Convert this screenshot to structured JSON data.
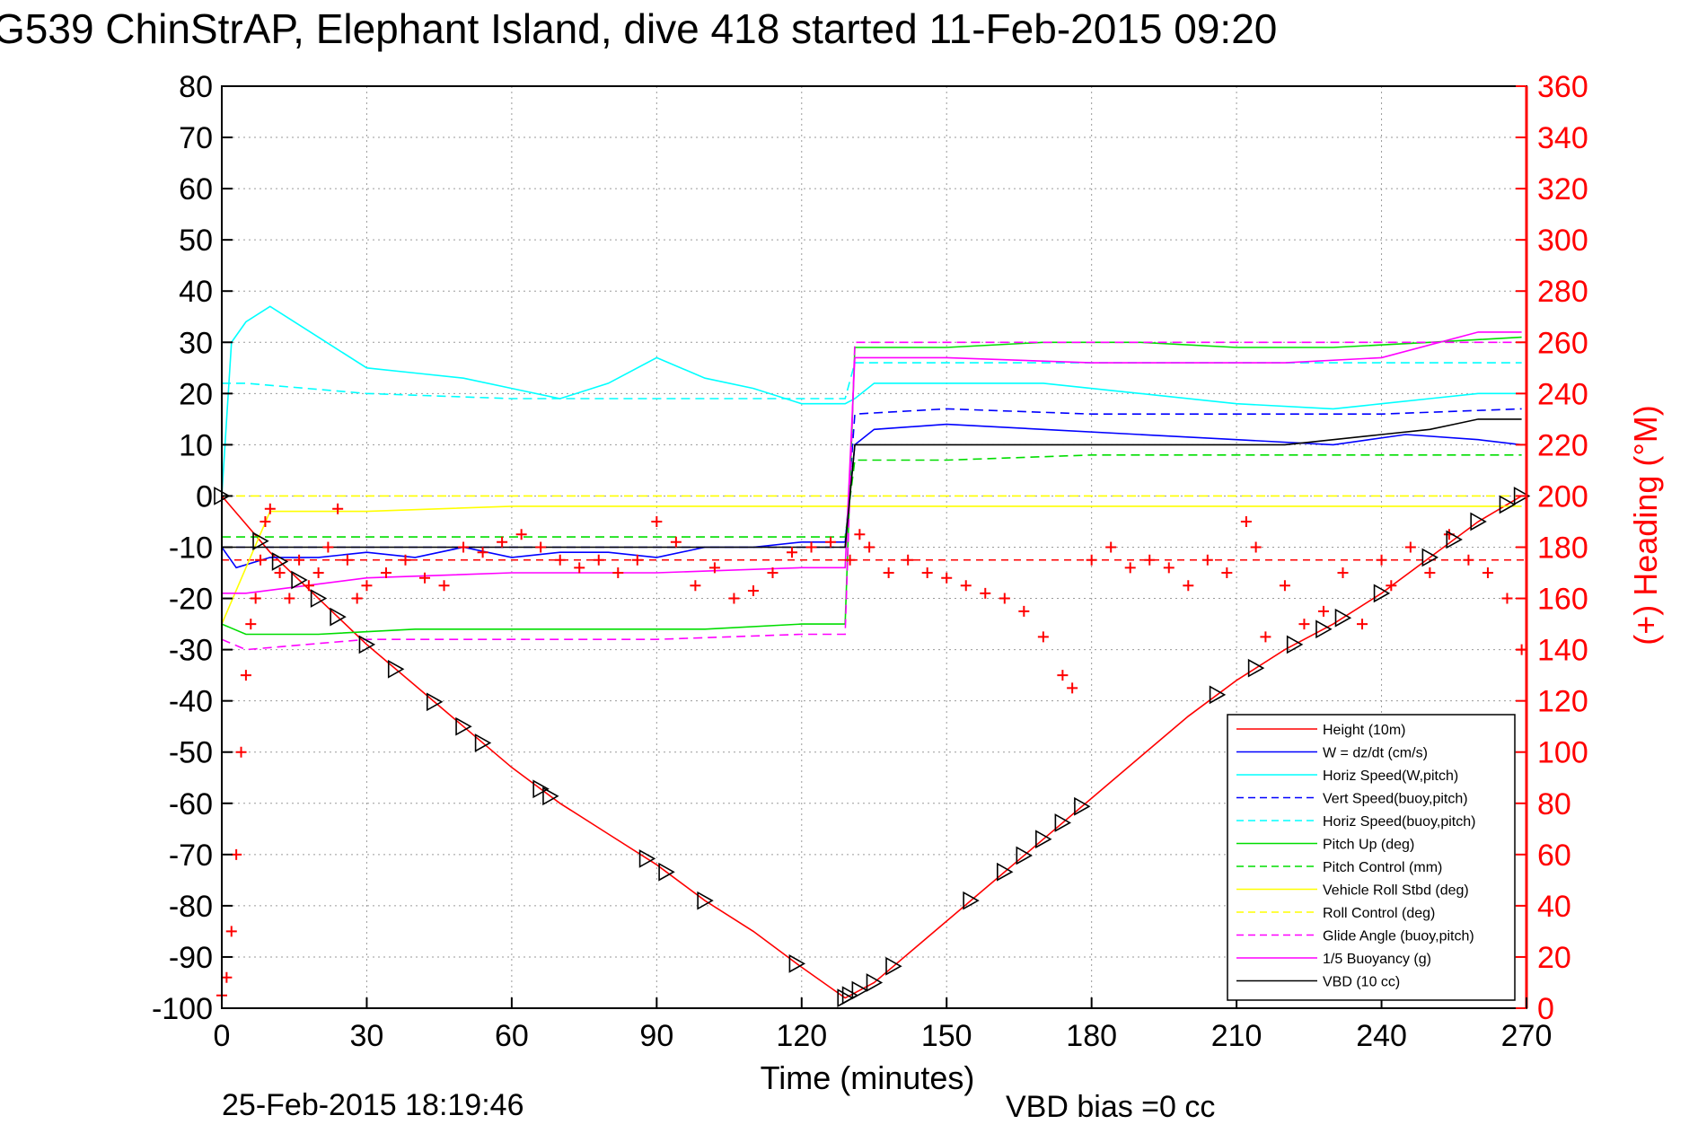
{
  "title": "G539 ChinStrAP, Elephant Island, dive 418 started 11-Feb-2015 09:20",
  "footer": {
    "timestamp": "25-Feb-2015 18:19:46",
    "vbd_bias": "VBD bias =0 cc"
  },
  "chart_data": {
    "type": "line",
    "xlabel": "Time (minutes)",
    "ylabel_left": "",
    "ylabel_right": "(+) Heading (°M)",
    "xlim": [
      0,
      270
    ],
    "ylim_left": [
      -100,
      80
    ],
    "ylim_right": [
      0,
      360
    ],
    "x_ticks": [
      "0",
      "30",
      "60",
      "90",
      "120",
      "150",
      "180",
      "210",
      "240",
      "270"
    ],
    "y_ticks_left": [
      "80",
      "70",
      "60",
      "50",
      "40",
      "30",
      "20",
      "10",
      "0",
      "-10",
      "-20",
      "-30",
      "-40",
      "-50",
      "-60",
      "-70",
      "-80",
      "-90",
      "-100"
    ],
    "y_ticks_right": [
      "360",
      "340",
      "320",
      "300",
      "280",
      "260",
      "240",
      "220",
      "200",
      "180",
      "160",
      "140",
      "120",
      "100",
      "80",
      "60",
      "40",
      "20",
      "0"
    ],
    "grid": true,
    "legend_position": "bottom-right",
    "series": [
      {
        "name": "Height (10m)",
        "color": "#ff0000",
        "style": "solid",
        "x": [
          0,
          10,
          20,
          30,
          40,
          50,
          60,
          70,
          80,
          90,
          100,
          110,
          120,
          129,
          131,
          135,
          140,
          150,
          160,
          170,
          180,
          190,
          200,
          210,
          220,
          230,
          240,
          250,
          260,
          269
        ],
        "y": [
          0,
          -11,
          -20,
          -29,
          -37,
          -45,
          -53,
          -60,
          -66,
          -72,
          -79,
          -85,
          -92,
          -98,
          -97,
          -95,
          -91,
          -83,
          -75,
          -67,
          -59,
          -51,
          -43,
          -36,
          -30,
          -25,
          -19,
          -12,
          -5,
          0
        ]
      },
      {
        "name": "W = dz/dt (cm/s)",
        "color": "#0000ff",
        "style": "solid",
        "x": [
          0,
          3,
          10,
          20,
          30,
          40,
          50,
          60,
          70,
          80,
          90,
          100,
          110,
          120,
          129,
          131,
          135,
          150,
          170,
          190,
          210,
          230,
          245,
          260,
          269
        ],
        "y": [
          -10,
          -14,
          -12,
          -12,
          -11,
          -12,
          -10,
          -12,
          -11,
          -11,
          -12,
          -10,
          -10,
          -9,
          -9,
          10,
          13,
          14,
          13,
          12,
          11,
          10,
          12,
          11,
          10
        ]
      },
      {
        "name": "Horiz Speed(W,pitch)",
        "color": "#00ffff",
        "style": "solid",
        "x": [
          0,
          2,
          5,
          10,
          20,
          30,
          40,
          50,
          60,
          70,
          80,
          90,
          100,
          110,
          120,
          129,
          131,
          135,
          150,
          170,
          190,
          210,
          230,
          240,
          250,
          260,
          269
        ],
        "y": [
          0,
          30,
          34,
          37,
          31,
          25,
          24,
          23,
          21,
          19,
          22,
          27,
          23,
          21,
          18,
          18,
          19,
          22,
          22,
          22,
          20,
          18,
          17,
          18,
          19,
          20,
          20
        ]
      },
      {
        "name": "Vert Speed(buoy,pitch)",
        "color": "#0000ff",
        "style": "dashed",
        "x": [
          0,
          5,
          30,
          60,
          90,
          120,
          129,
          131,
          150,
          180,
          210,
          240,
          269
        ],
        "y": [
          -10,
          -10,
          -10,
          -10,
          -10,
          -10,
          -10,
          16,
          17,
          16,
          16,
          16,
          17
        ]
      },
      {
        "name": "Horiz Speed(buoy,pitch)",
        "color": "#00ffff",
        "style": "dashed",
        "x": [
          0,
          5,
          30,
          60,
          90,
          120,
          129,
          131,
          150,
          180,
          210,
          240,
          269
        ],
        "y": [
          22,
          22,
          20,
          19,
          19,
          19,
          19,
          26,
          26,
          26,
          26,
          26,
          26
        ]
      },
      {
        "name": "Pitch Up (deg)",
        "color": "#00dd00",
        "style": "solid",
        "x": [
          0,
          5,
          20,
          40,
          60,
          80,
          100,
          120,
          129,
          131,
          150,
          170,
          190,
          210,
          230,
          250,
          269
        ],
        "y": [
          -25,
          -27,
          -27,
          -26,
          -26,
          -26,
          -26,
          -25,
          -25,
          29,
          29,
          30,
          30,
          29,
          29,
          30,
          31
        ]
      },
      {
        "name": "Pitch Control (mm)",
        "color": "#00dd00",
        "style": "dashed",
        "x": [
          0,
          5,
          30,
          60,
          90,
          120,
          129,
          131,
          150,
          180,
          210,
          240,
          269
        ],
        "y": [
          -8,
          -8,
          -8,
          -8,
          -8,
          -8,
          -8,
          7,
          7,
          8,
          8,
          8,
          8
        ]
      },
      {
        "name": "Vehicle Roll Stbd (deg)",
        "color": "#ffff00",
        "style": "solid",
        "x": [
          0,
          10,
          30,
          60,
          90,
          120,
          129,
          131,
          150,
          180,
          210,
          240,
          269
        ],
        "y": [
          -25,
          -3,
          -3,
          -2,
          -2,
          -2,
          -2,
          -2,
          -2,
          -2,
          -2,
          -2,
          -2
        ]
      },
      {
        "name": "Roll Control (deg)",
        "color": "#ffff00",
        "style": "dashed",
        "x": [
          0,
          5,
          30,
          60,
          90,
          120,
          129,
          131,
          150,
          180,
          210,
          240,
          269
        ],
        "y": [
          0,
          0,
          0,
          0,
          0,
          0,
          0,
          0,
          0,
          0,
          0,
          0,
          0
        ]
      },
      {
        "name": "Glide Angle (buoy,pitch)",
        "color": "#ff00ff",
        "style": "dashed",
        "x": [
          0,
          5,
          30,
          60,
          90,
          120,
          129,
          131,
          150,
          180,
          210,
          240,
          269
        ],
        "y": [
          -28,
          -30,
          -28,
          -28,
          -28,
          -27,
          -27,
          30,
          30,
          30,
          30,
          30,
          30
        ]
      },
      {
        "name": "1/5 Buoyancy (g)",
        "color": "#ff00ff",
        "style": "solid",
        "x": [
          0,
          5,
          30,
          60,
          90,
          120,
          129,
          131,
          150,
          180,
          200,
          220,
          240,
          260,
          269
        ],
        "y": [
          -19,
          -19,
          -16,
          -15,
          -15,
          -14,
          -14,
          27,
          27,
          26,
          26,
          26,
          27,
          32,
          32
        ]
      },
      {
        "name": "VBD (10 cc)",
        "color": "#000000",
        "style": "solid",
        "x": [
          0,
          5,
          30,
          60,
          90,
          120,
          129,
          131,
          150,
          180,
          200,
          220,
          240,
          250,
          255,
          260,
          269
        ],
        "y": [
          -10,
          -10,
          -10,
          -10,
          -10,
          -10,
          -10,
          10,
          10,
          10,
          10,
          10,
          12,
          13,
          14,
          15,
          15
        ]
      },
      {
        "name": "(+) Heading (°M)",
        "color": "#ff0000",
        "style": "markers",
        "axis": "right",
        "x": [
          0,
          1,
          2,
          3,
          4,
          5,
          6,
          7,
          8,
          9,
          10,
          12,
          14,
          16,
          18,
          20,
          22,
          24,
          26,
          28,
          30,
          34,
          38,
          42,
          46,
          50,
          54,
          58,
          62,
          66,
          70,
          74,
          78,
          82,
          86,
          90,
          94,
          98,
          102,
          106,
          110,
          114,
          118,
          122,
          126,
          130,
          132,
          134,
          138,
          142,
          146,
          150,
          154,
          158,
          162,
          166,
          170,
          174,
          176,
          180,
          184,
          188,
          192,
          196,
          200,
          204,
          208,
          212,
          214,
          216,
          220,
          224,
          228,
          232,
          236,
          240,
          242,
          246,
          250,
          254,
          258,
          262,
          266,
          269
        ],
        "y": [
          5,
          12,
          30,
          60,
          100,
          130,
          150,
          160,
          175,
          190,
          195,
          170,
          160,
          175,
          165,
          170,
          180,
          195,
          175,
          160,
          165,
          170,
          175,
          168,
          165,
          180,
          178,
          182,
          185,
          180,
          175,
          172,
          175,
          170,
          175,
          190,
          182,
          165,
          172,
          160,
          163,
          170,
          178,
          180,
          182,
          175,
          185,
          180,
          170,
          175,
          170,
          168,
          165,
          162,
          160,
          155,
          145,
          130,
          125,
          175,
          180,
          172,
          175,
          172,
          165,
          175,
          170,
          190,
          180,
          145,
          165,
          150,
          155,
          170,
          150,
          175,
          165,
          180,
          170,
          185,
          175,
          170,
          160,
          140
        ]
      }
    ],
    "heading_reference": {
      "value": 175,
      "color": "#ff0000",
      "style": "dashed"
    },
    "markers_triangles_x": [
      0,
      8,
      12,
      16,
      20,
      24,
      30,
      36,
      44,
      50,
      54,
      66,
      68,
      88,
      92,
      100,
      119,
      129,
      130,
      132,
      135,
      139,
      155,
      162,
      166,
      170,
      174,
      178,
      206,
      214,
      222,
      228,
      232,
      240,
      250,
      255,
      260,
      266,
      269
    ]
  }
}
